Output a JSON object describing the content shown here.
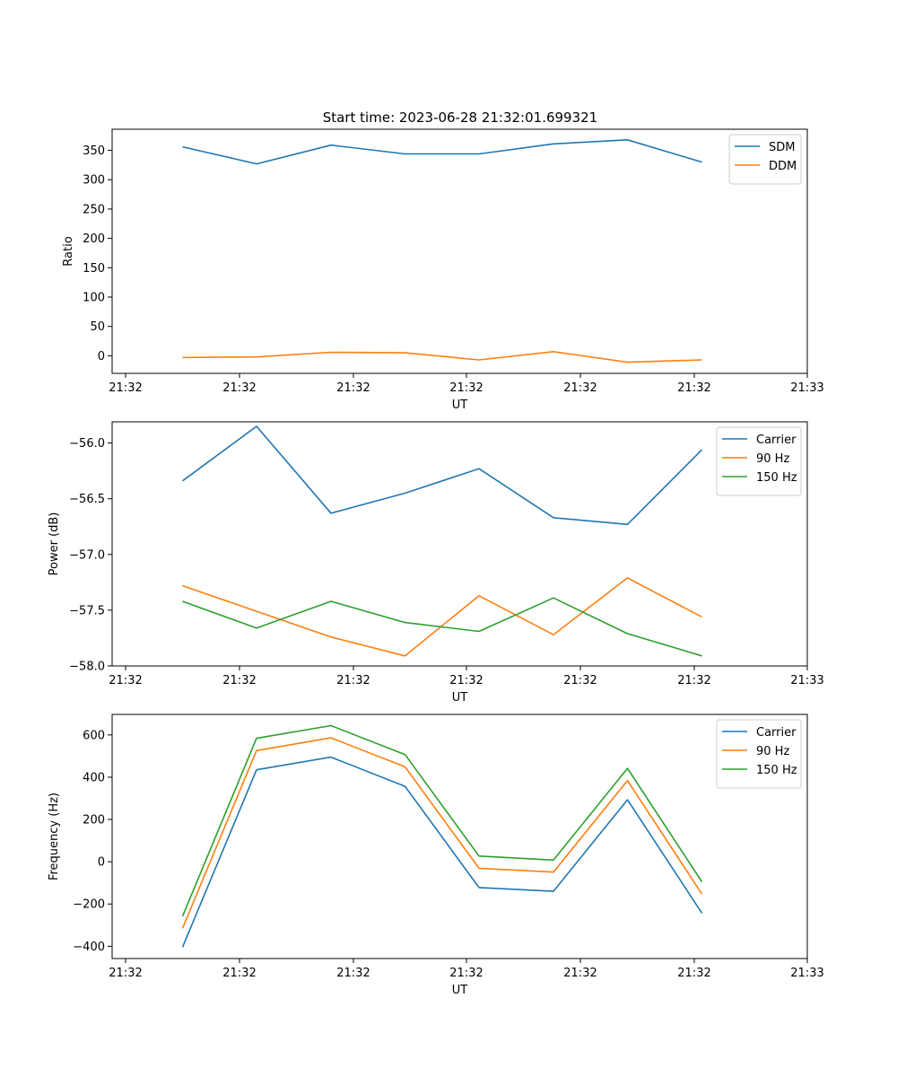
{
  "figure": {
    "title": "Start time: 2023-06-28 21:32:01.699321"
  },
  "chart_data": [
    {
      "type": "line",
      "xlabel": "UT",
      "ylabel": "Ratio",
      "x_tick_labels": [
        "21:32",
        "21:32",
        "21:32",
        "21:32",
        "21:32",
        "21:32",
        "21:33"
      ],
      "yticks": [
        0,
        50,
        100,
        150,
        200,
        250,
        300,
        350
      ],
      "y_tick_labels": [
        "0",
        "50",
        "100",
        "150",
        "200",
        "250",
        "300",
        "350"
      ],
      "ylim": [
        -30,
        386
      ],
      "legend_position": "top-right",
      "series": [
        {
          "name": "SDM",
          "color": "#1f77b4",
          "values": [
            356,
            327,
            359,
            344,
            344,
            361,
            368,
            330
          ]
        },
        {
          "name": "DDM",
          "color": "#ff7f0e",
          "values": [
            -3,
            -2,
            6,
            5,
            -7,
            7,
            -11,
            -7
          ]
        }
      ]
    },
    {
      "type": "line",
      "xlabel": "UT",
      "ylabel": "Power (dB)",
      "x_tick_labels": [
        "21:32",
        "21:32",
        "21:32",
        "21:32",
        "21:32",
        "21:32",
        "21:33"
      ],
      "yticks": [
        -58.0,
        -57.5,
        -57.0,
        -56.5,
        -56.0
      ],
      "y_tick_labels": [
        "−58.0",
        "−57.5",
        "−57.0",
        "−56.5",
        "−56.0"
      ],
      "ylim": [
        -58.0,
        -55.81
      ],
      "legend_position": "top-right",
      "series": [
        {
          "name": "Carrier",
          "color": "#1f77b4",
          "values": [
            -56.34,
            -55.85,
            -56.63,
            -56.45,
            -56.23,
            -56.67,
            -56.73,
            -56.06
          ]
        },
        {
          "name": "90 Hz",
          "color": "#ff7f0e",
          "values": [
            -57.28,
            -57.51,
            -57.74,
            -57.91,
            -57.37,
            -57.72,
            -57.21,
            -57.56
          ]
        },
        {
          "name": "150 Hz",
          "color": "#2ca02c",
          "values": [
            -57.42,
            -57.66,
            -57.42,
            -57.61,
            -57.69,
            -57.39,
            -57.71,
            -57.91
          ]
        }
      ]
    },
    {
      "type": "line",
      "xlabel": "UT",
      "ylabel": "Frequency (Hz)",
      "x_tick_labels": [
        "21:32",
        "21:32",
        "21:32",
        "21:32",
        "21:32",
        "21:32",
        "21:33"
      ],
      "yticks": [
        -400,
        -200,
        0,
        200,
        400,
        600
      ],
      "y_tick_labels": [
        "−400",
        "−200",
        "0",
        "200",
        "400",
        "600"
      ],
      "ylim": [
        -458,
        697
      ],
      "legend_position": "top-right",
      "series": [
        {
          "name": "Carrier",
          "color": "#1f77b4",
          "values": [
            -404,
            435,
            495,
            357,
            -122,
            -140,
            293,
            -243
          ]
        },
        {
          "name": "90 Hz",
          "color": "#ff7f0e",
          "values": [
            -315,
            526,
            586,
            449,
            -31,
            -49,
            384,
            -153
          ]
        },
        {
          "name": "150 Hz",
          "color": "#2ca02c",
          "values": [
            -258,
            584,
            644,
            507,
            27,
            8,
            442,
            -95
          ]
        }
      ]
    }
  ]
}
